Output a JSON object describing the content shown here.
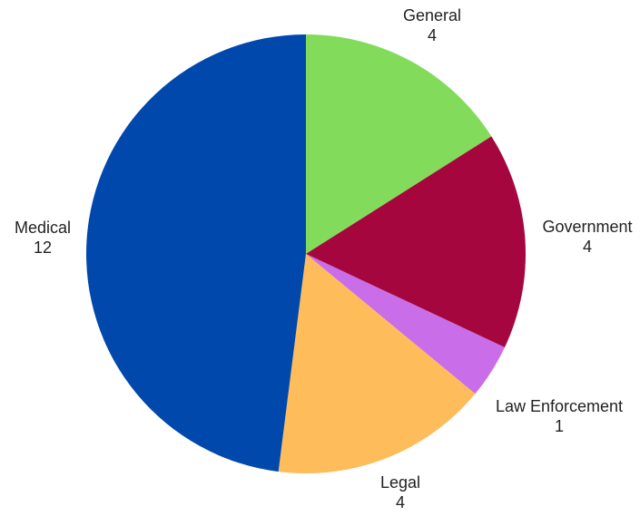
{
  "chart_data": {
    "type": "pie",
    "title": "",
    "slices": [
      {
        "label": "General",
        "value": 4,
        "value_label": "4",
        "color": "#82DB5B"
      },
      {
        "label": "Government",
        "value": 4,
        "value_label": "4",
        "color": "#A5063D"
      },
      {
        "label": "Law Enforcement",
        "value": 1,
        "value_label": "1",
        "color": "#C96DE8"
      },
      {
        "label": "Legal",
        "value": 4,
        "value_label": "4",
        "color": "#FFBC5A"
      },
      {
        "label": "Medical",
        "value": 12,
        "value_label": "12",
        "color": "#0048AC"
      }
    ],
    "start_angle_deg": 0,
    "direction": "clockwise",
    "legend": "none"
  }
}
